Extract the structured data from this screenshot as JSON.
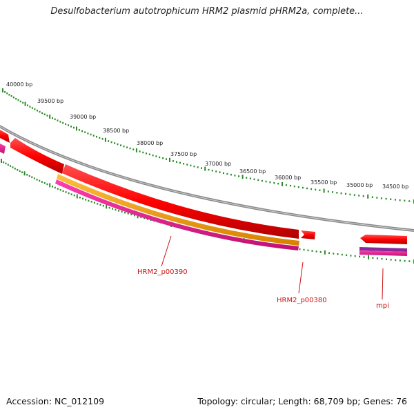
{
  "title": "Desulfobacterium autotrophicum HRM2 plasmid pHRM2a, complete...",
  "footer": {
    "accession": "Accession: NC_012109",
    "topology": "Topology: circular; Length: 68,709 bp; Genes: 76"
  },
  "colors": {
    "backbone": "#888888",
    "tick": "#2a8a2a",
    "gene_red": "#ff1a1a",
    "gene_orange": "#f0a020",
    "gene_magenta": "#e0208c",
    "gene_pink": "#ff69b4",
    "gene_purple": "#8a2a9a",
    "label": "#cc1111"
  },
  "scale_labels": [
    "40000 bp",
    "39500 bp",
    "39000 bp",
    "38500 bp",
    "38000 bp",
    "37500 bp",
    "37000 bp",
    "36500 bp",
    "36000 bp",
    "35500 bp",
    "35000 bp",
    "34500 bp"
  ],
  "gene_labels": [
    "HRM2_p00390",
    "HRM2_p00380",
    "mpi"
  ]
}
